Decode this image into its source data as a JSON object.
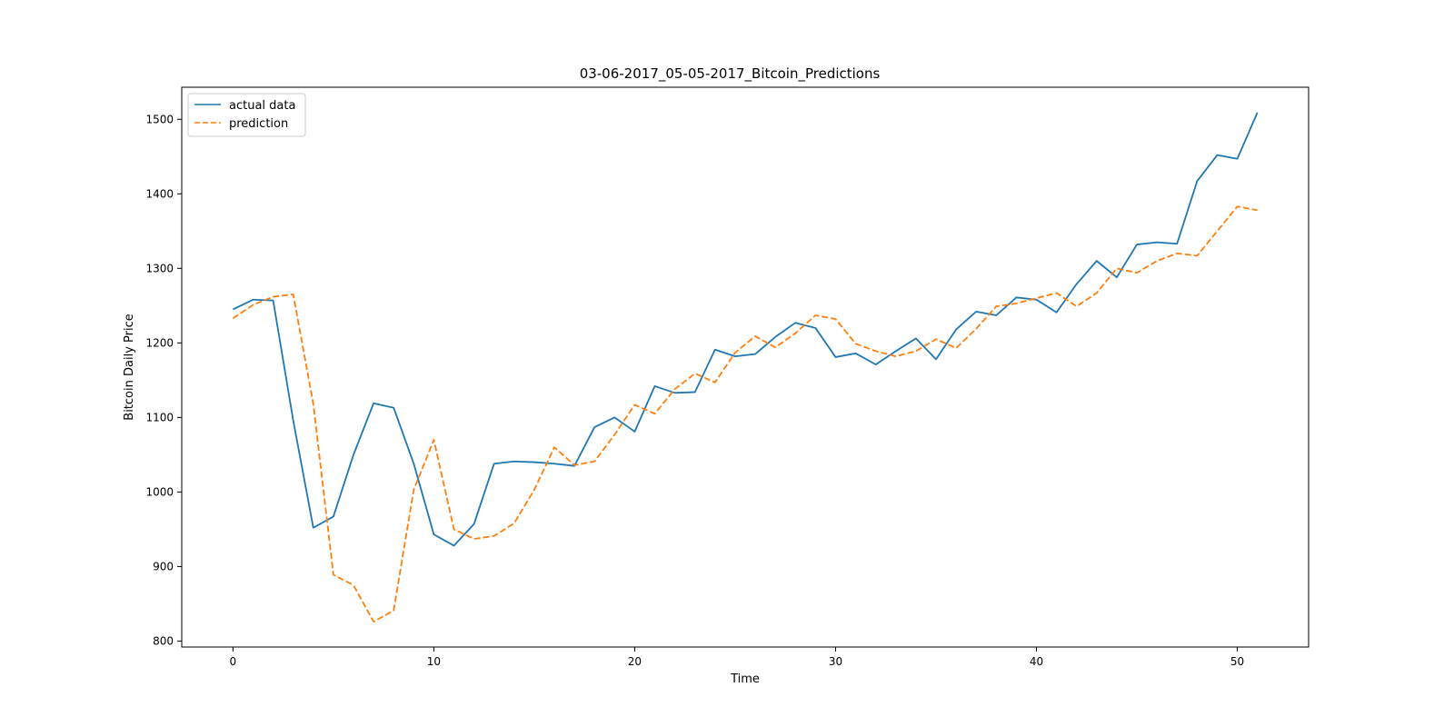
{
  "chart_data": {
    "type": "line",
    "title": "03-06-2017_05-05-2017_Bitcoin_Predictions",
    "xlabel": "Time",
    "ylabel": "Bitcoin Daily Price",
    "xlim": [
      -2.55,
      53.55
    ],
    "ylim": [
      792,
      1543
    ],
    "x_ticks": [
      0,
      10,
      20,
      30,
      40,
      50
    ],
    "y_ticks": [
      800,
      900,
      1000,
      1100,
      1200,
      1300,
      1400,
      1500
    ],
    "grid": false,
    "legend_position": "upper-left",
    "x": [
      0,
      1,
      2,
      3,
      4,
      5,
      6,
      7,
      8,
      9,
      10,
      11,
      12,
      13,
      14,
      15,
      16,
      17,
      18,
      19,
      20,
      21,
      22,
      23,
      24,
      25,
      26,
      27,
      28,
      29,
      30,
      31,
      32,
      33,
      34,
      35,
      36,
      37,
      38,
      39,
      40,
      41,
      42,
      43,
      44,
      45,
      46,
      47,
      48,
      49,
      50,
      51
    ],
    "series": [
      {
        "name": "actual data",
        "color": "#1f77b4",
        "style": "solid",
        "values": [
          1245,
          1258,
          1257,
          1096,
          952,
          967,
          1050,
          1119,
          1113,
          1038,
          943,
          928,
          957,
          1038,
          1041,
          1040,
          1038,
          1035,
          1087,
          1100,
          1081,
          1142,
          1133,
          1134,
          1191,
          1182,
          1185,
          1208,
          1227,
          1220,
          1181,
          1186,
          1171,
          1189,
          1206,
          1178,
          1218,
          1242,
          1237,
          1261,
          1258,
          1241,
          1279,
          1310,
          1288,
          1332,
          1335,
          1333,
          1417,
          1452,
          1447,
          1509
        ]
      },
      {
        "name": "prediction",
        "color": "#ff7f0e",
        "style": "dashed",
        "values": [
          1233,
          1251,
          1262,
          1265,
          1118,
          889,
          875,
          826,
          841,
          1003,
          1070,
          950,
          937,
          941,
          958,
          1003,
          1060,
          1036,
          1041,
          1077,
          1117,
          1105,
          1138,
          1159,
          1147,
          1187,
          1209,
          1194,
          1213,
          1237,
          1232,
          1199,
          1189,
          1182,
          1189,
          1205,
          1193,
          1219,
          1249,
          1253,
          1260,
          1267,
          1249,
          1267,
          1300,
          1294,
          1310,
          1320,
          1317,
          1350,
          1383,
          1378
        ]
      }
    ]
  }
}
